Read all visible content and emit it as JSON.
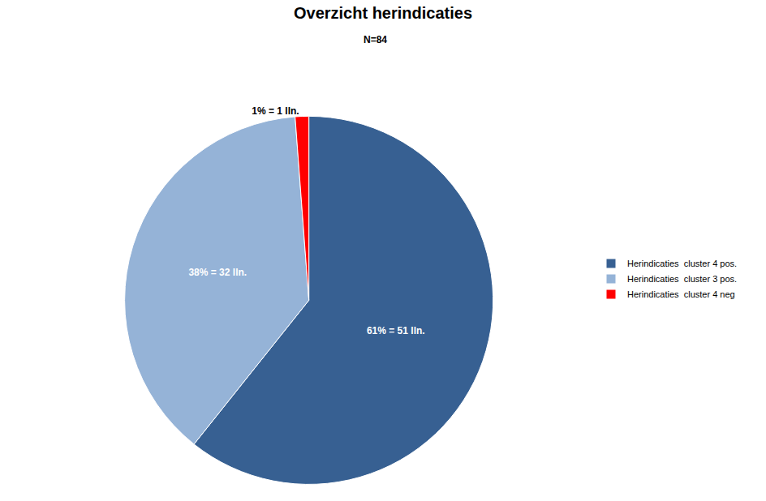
{
  "chart_data": {
    "type": "pie",
    "title": "Overzicht herindicaties",
    "subtitle": "N=84",
    "categories": [
      "Herindicaties  cluster 4 pos.",
      "Herindicaties  cluster 3 pos.",
      "Herindicaties  cluster 4 neg"
    ],
    "values": [
      51,
      32,
      1
    ],
    "value_labels": [
      "61% = 51 lln.",
      "38% = 32 lln.",
      "1% = 1 lln."
    ],
    "colors": [
      "#376092",
      "#95b3d7",
      "#ff0000"
    ],
    "data_labels": true,
    "legend": "right"
  }
}
